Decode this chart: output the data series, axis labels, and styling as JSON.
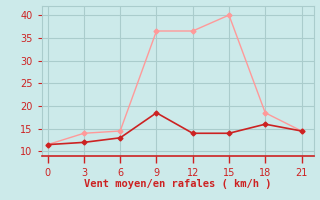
{
  "xlabel": "Vent moyen/en rafales ( km/h )",
  "bg_color": "#cceaea",
  "grid_color": "#aacccc",
  "line1_color": "#ff9999",
  "line2_color": "#cc2222",
  "line1_x": [
    0,
    3,
    6,
    9,
    12,
    15,
    18,
    21
  ],
  "line1_y": [
    11.5,
    14.0,
    14.5,
    36.5,
    36.5,
    40.0,
    18.5,
    14.5
  ],
  "line2_x": [
    0,
    3,
    6,
    9,
    12,
    15,
    18,
    21
  ],
  "line2_y": [
    11.5,
    12.0,
    13.0,
    18.5,
    14.0,
    14.0,
    16.0,
    14.5
  ],
  "xlim": [
    -0.5,
    22
  ],
  "ylim": [
    9.0,
    42.0
  ],
  "xticks": [
    0,
    3,
    6,
    9,
    12,
    15,
    18,
    21
  ],
  "yticks": [
    10,
    15,
    20,
    25,
    30,
    35,
    40
  ],
  "marker": "D",
  "markersize": 2.5,
  "lw1": 1.0,
  "lw2": 1.2
}
